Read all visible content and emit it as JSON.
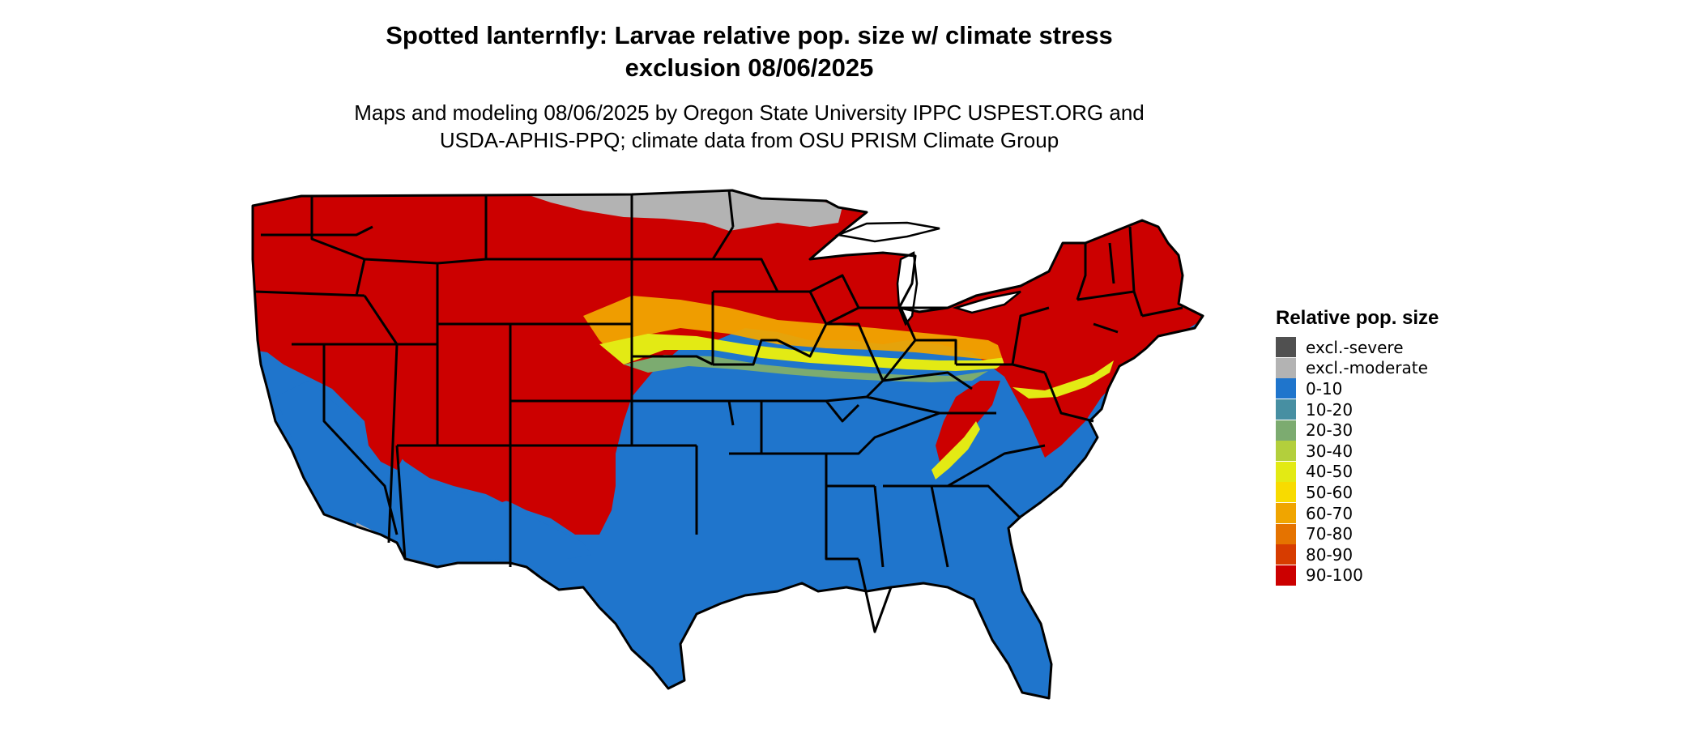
{
  "title_lines": [
    "Spotted lanternfly: Larvae relative pop. size w/ climate stress",
    "exclusion 08/06/2025"
  ],
  "subtitle_lines": [
    "Maps and modeling 08/06/2025 by Oregon State University IPPC USPEST.ORG and",
    "USDA-APHIS-PPQ; climate data from OSU PRISM Climate Group"
  ],
  "legend": {
    "title": "Relative pop. size",
    "items": [
      {
        "label": "excl.-severe",
        "color": "#505050"
      },
      {
        "label": "excl.-moderate",
        "color": "#b3b3b3"
      },
      {
        "label": "0-10",
        "color": "#1f75cc"
      },
      {
        "label": "10-20",
        "color": "#478fa2"
      },
      {
        "label": "20-30",
        "color": "#7cab70"
      },
      {
        "label": "30-40",
        "color": "#b3cf3c"
      },
      {
        "label": "40-50",
        "color": "#e3ea14"
      },
      {
        "label": "50-60",
        "color": "#f8db00"
      },
      {
        "label": "60-70",
        "color": "#f0a500"
      },
      {
        "label": "70-80",
        "color": "#e57300"
      },
      {
        "label": "80-90",
        "color": "#d73c00"
      },
      {
        "label": "90-100",
        "color": "#cc0000"
      }
    ]
  }
}
